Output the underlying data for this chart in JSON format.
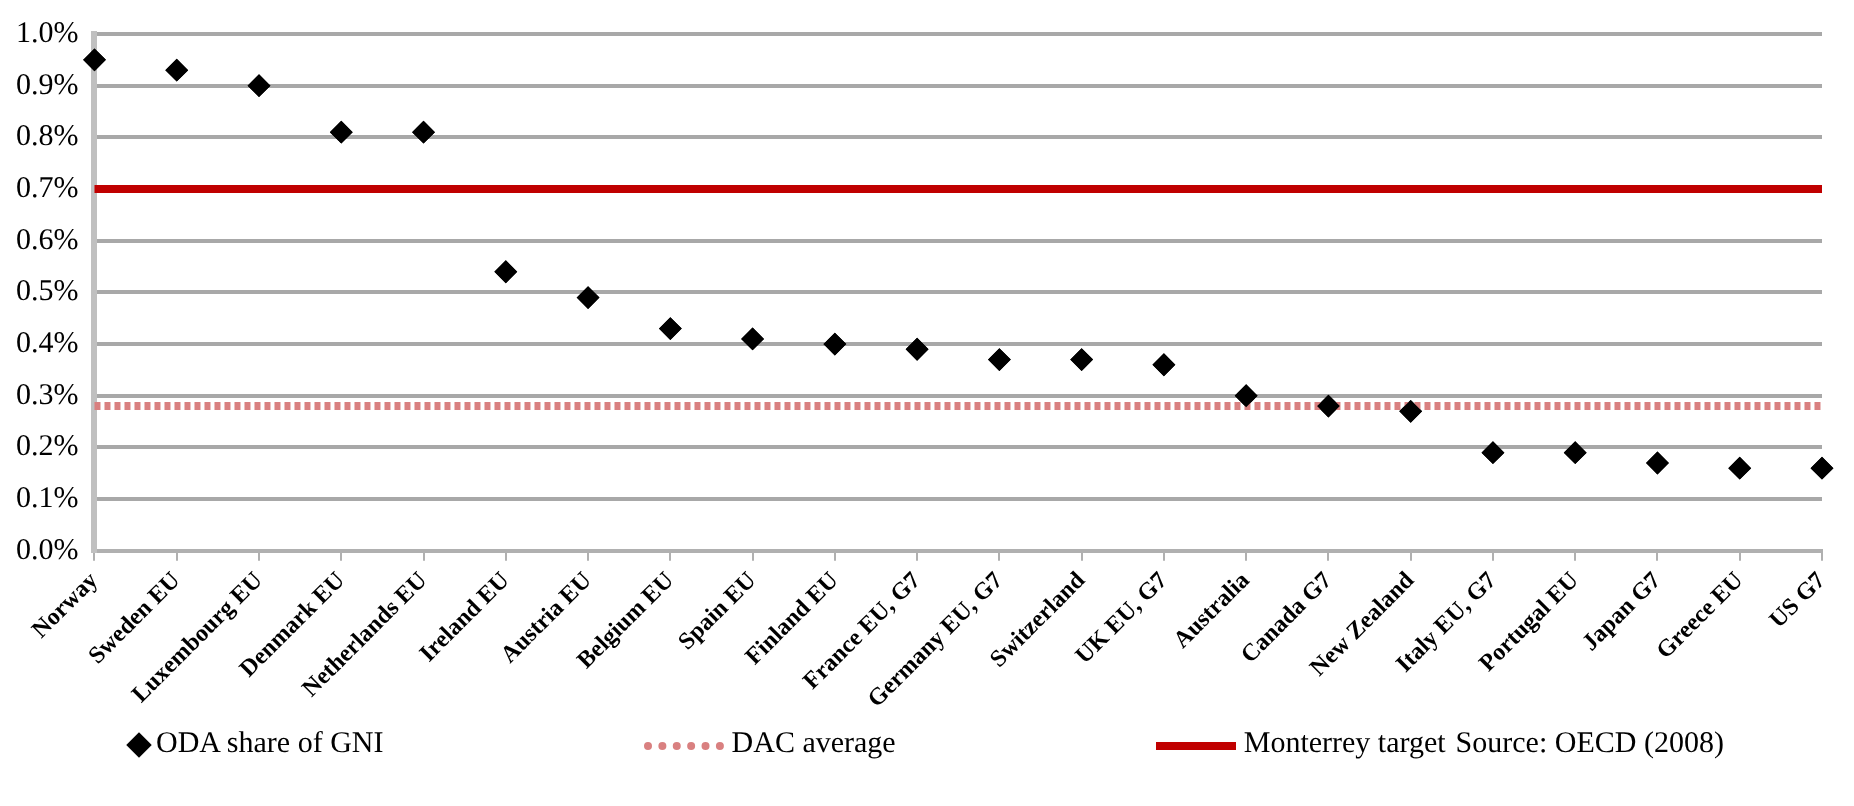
{
  "chart_data": {
    "type": "scatter",
    "categories": [
      "Norway",
      "Sweden EU",
      "Luxembourg EU",
      "Denmark EU",
      "Netherlands EU",
      "Ireland EU",
      "Austria EU",
      "Belgium EU",
      "Spain EU",
      "Finland EU",
      "France EU, G7",
      "Germany EU, G7",
      "Switzerland",
      "UK EU, G7",
      "Australia",
      "Canada G7",
      "New Zealand",
      "Italy EU, G7",
      "Portugal EU",
      "Japan G7",
      "Greece EU",
      "US G7"
    ],
    "series": [
      {
        "name": "ODA share of GNI",
        "color": "#000000",
        "values": [
          0.95,
          0.93,
          0.9,
          0.81,
          0.81,
          0.54,
          0.49,
          0.43,
          0.41,
          0.4,
          0.39,
          0.37,
          0.37,
          0.36,
          0.3,
          0.28,
          0.27,
          0.19,
          0.19,
          0.17,
          0.16,
          0.16
        ]
      }
    ],
    "ylim": [
      0,
      1
    ],
    "yticks": [
      {
        "value": 0,
        "label": "0.0%"
      },
      {
        "value": 0.1,
        "label": "0.1%"
      },
      {
        "value": 0.2,
        "label": "0.2%"
      },
      {
        "value": 0.3,
        "label": "0.3%"
      },
      {
        "value": 0.4,
        "label": "0.4%"
      },
      {
        "value": 0.5,
        "label": "0.5%"
      },
      {
        "value": 0.6,
        "label": "0.6%"
      },
      {
        "value": 0.7,
        "label": "0.7%"
      },
      {
        "value": 0.8,
        "label": "0.8%"
      },
      {
        "value": 0.9,
        "label": "0.9%"
      },
      {
        "value": 1,
        "label": "1.0%"
      }
    ],
    "ref_lines": [
      {
        "axis": "y",
        "value": 0.28,
        "label": "DAC average",
        "color": "#d98080",
        "line_style": "dotted"
      },
      {
        "axis": "y",
        "value": 0.7,
        "label": "Monterrey target",
        "color": "#c00000",
        "line_style": "solid"
      }
    ],
    "annotations": [
      "Source: OECD (2008)"
    ],
    "marker": "diamond",
    "grid": "y",
    "legend": "bottom"
  }
}
